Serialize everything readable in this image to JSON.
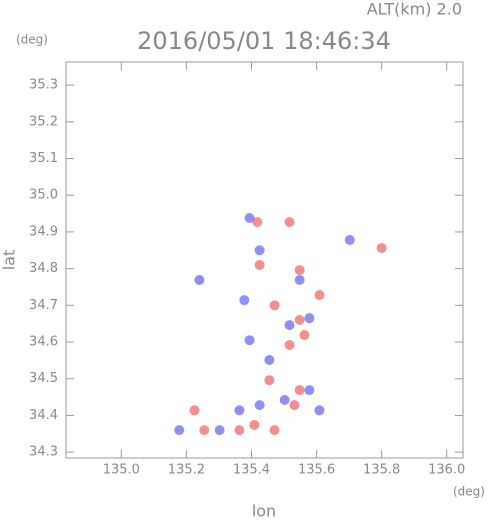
{
  "chart_data": {
    "type": "scatter",
    "title": "2016/05/01 18:46:34",
    "altitude_label": "ALT(km) 2.0",
    "y_unit": "(deg)",
    "x_unit": "(deg)",
    "x_label": "lon",
    "y_label": "lat",
    "xlim": [
      134.83,
      136.05
    ],
    "ylim": [
      34.284,
      35.363
    ],
    "xticks": [
      {
        "value": 135,
        "label": "135.0"
      },
      135.2,
      135.4,
      135.6,
      135.8,
      {
        "value": 136,
        "label": "136.0"
      }
    ],
    "yticks": [
      34.3,
      34.4,
      34.5,
      34.6,
      34.7,
      34.8,
      34.9,
      {
        "value": 35,
        "label": "35.0"
      },
      35.1,
      35.2,
      35.3
    ],
    "series": [
      {
        "color": "#f06a6a",
        "x": [
          135.517,
          135.418,
          135.548,
          135.8,
          135.609,
          135.471,
          135.548,
          135.517,
          135.455,
          135.548,
          135.532,
          135.409,
          135.471,
          135.225,
          135.255,
          135.363,
          135.563,
          135.425
        ],
        "values": [
          34.927,
          34.927,
          34.796,
          34.856,
          34.728,
          34.7,
          34.66,
          34.592,
          34.496,
          34.469,
          34.428,
          34.374,
          34.36,
          34.414,
          34.36,
          34.36,
          34.619,
          34.81
        ]
      },
      {
        "color": "#6a6af0",
        "x": [
          135.394,
          135.702,
          135.24,
          135.548,
          135.394,
          135.578,
          135.455,
          135.363,
          135.425,
          135.578,
          135.302,
          135.178,
          135.378,
          135.502,
          135.609,
          135.425,
          135.517
        ],
        "values": [
          34.938,
          34.878,
          34.769,
          34.769,
          34.605,
          34.665,
          34.551,
          34.414,
          34.428,
          34.469,
          34.36,
          34.36,
          34.714,
          34.442,
          34.414,
          34.85,
          34.646
        ]
      }
    ]
  }
}
